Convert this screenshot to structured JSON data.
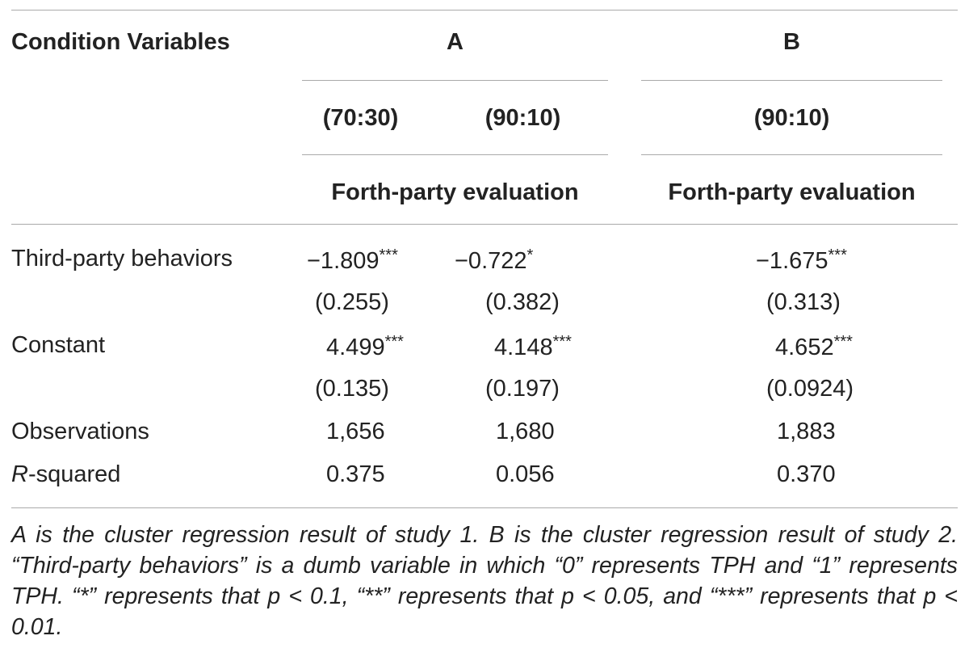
{
  "table": {
    "col_header_label": "Condition Variables",
    "group_a": "A",
    "group_b": "B",
    "sub_a1": "(70:30)",
    "sub_a2": "(90:10)",
    "sub_b1": "(90:10)",
    "dv_a": "Forth-party evaluation",
    "dv_b": "Forth-party evaluation",
    "rows": {
      "third_party": {
        "label": "Third-party behaviors",
        "a1": "−1.809",
        "a1_sig": "***",
        "a1_se": "(0.255)",
        "a2": "−0.722",
        "a2_sig": "*",
        "a2_se": "(0.382)",
        "b1": "−1.675",
        "b1_sig": "***",
        "b1_se": "(0.313)"
      },
      "constant": {
        "label": "Constant",
        "a1": "4.499",
        "a1_sig": "***",
        "a1_se": "(0.135)",
        "a2": "4.148",
        "a2_sig": "***",
        "a2_se": "(0.197)",
        "b1": "4.652",
        "b1_sig": "***",
        "b1_se": "(0.0924)"
      },
      "observations": {
        "label": "Observations",
        "a1": "1,656",
        "a2": "1,680",
        "b1": "1,883"
      },
      "r_squared": {
        "label_italic": "R",
        "label_rest": "-squared",
        "a1": "0.375",
        "a2": "0.056",
        "b1": "0.370"
      }
    }
  },
  "footnote": "A is the cluster regression result of study 1. B is the cluster regression result of study 2. “Third-party behaviors” is a dumb variable in which “0” represents TPH and “1” represents TPH. “*” represents that p < 0.1, “**” represents that p < 0.05, and “***” represents that p < 0.01."
}
